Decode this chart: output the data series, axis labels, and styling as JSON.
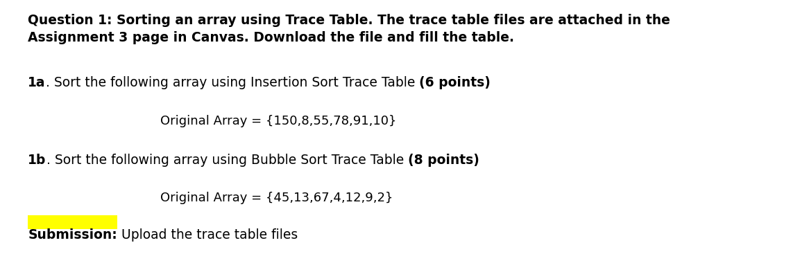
{
  "bg_color": "#ffffff",
  "title_line1": "Question 1: Sorting an array using Trace Table. The trace table files are attached in the",
  "title_line2": "Assignment 3 page in Canvas. Download the file and fill the table.",
  "q1a_part1": "1a",
  "q1a_part2": ". Sort the following array using Insertion Sort Trace Table ",
  "q1a_part3": "(6 points)",
  "q1a_array": "Original Array = {150,8,55,78,91,10}",
  "q1b_part1": "1b",
  "q1b_part2": ". Sort the following array using Bubble Sort Trace Table ",
  "q1b_part3": "(8 points)",
  "q1b_array": "Original Array = {45,13,67,4,12,9,2}",
  "submission_highlight": "Submission:",
  "submission_rest": " Upload the trace table files",
  "highlight_color": "#ffff00",
  "text_color": "#000000",
  "font_size_title": 13.5,
  "font_size_body": 13.5,
  "font_size_array": 13.0
}
